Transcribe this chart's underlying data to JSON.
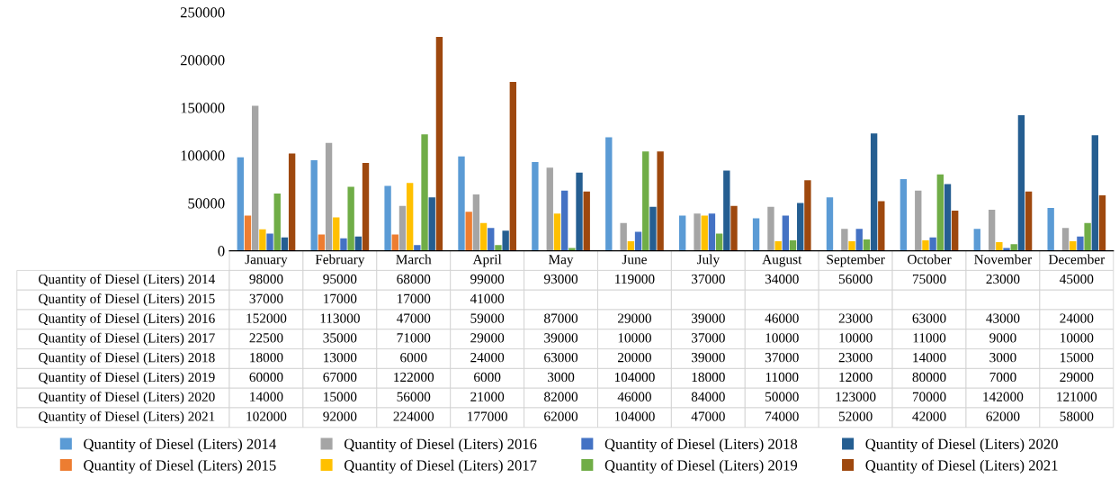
{
  "chart_data": {
    "type": "bar",
    "categories": [
      "January",
      "February",
      "March",
      "April",
      "May",
      "June",
      "July",
      "August",
      "September",
      "October",
      "November",
      "December"
    ],
    "series": [
      {
        "name": "Quantity of Diesel (Liters) 2014",
        "color": "#5b9bd5",
        "values": [
          98000,
          95000,
          68000,
          99000,
          93000,
          119000,
          37000,
          34000,
          56000,
          75000,
          23000,
          45000
        ]
      },
      {
        "name": "Quantity of Diesel (Liters) 2015",
        "color": "#ed7d31",
        "values": [
          37000,
          17000,
          17000,
          41000,
          null,
          null,
          null,
          null,
          null,
          null,
          null,
          null
        ]
      },
      {
        "name": "Quantity of Diesel (Liters) 2016",
        "color": "#a5a5a5",
        "values": [
          152000,
          113000,
          47000,
          59000,
          87000,
          29000,
          39000,
          46000,
          23000,
          63000,
          43000,
          24000
        ]
      },
      {
        "name": "Quantity of Diesel (Liters) 2017",
        "color": "#ffc000",
        "values": [
          22500,
          35000,
          71000,
          29000,
          39000,
          10000,
          37000,
          10000,
          10000,
          11000,
          9000,
          10000
        ]
      },
      {
        "name": "Quantity of Diesel (Liters) 2018",
        "color": "#4472c4",
        "values": [
          18000,
          13000,
          6000,
          24000,
          63000,
          20000,
          39000,
          37000,
          23000,
          14000,
          3000,
          15000
        ]
      },
      {
        "name": "Quantity of Diesel (Liters) 2019",
        "color": "#70ad47",
        "values": [
          60000,
          67000,
          122000,
          6000,
          3000,
          104000,
          18000,
          11000,
          12000,
          80000,
          7000,
          29000
        ]
      },
      {
        "name": "Quantity of Diesel (Liters) 2020",
        "color": "#255e91",
        "values": [
          14000,
          15000,
          56000,
          21000,
          82000,
          46000,
          84000,
          50000,
          123000,
          70000,
          142000,
          121000
        ]
      },
      {
        "name": "Quantity of Diesel (Liters) 2021",
        "color": "#9e480e",
        "values": [
          102000,
          92000,
          224000,
          177000,
          62000,
          104000,
          47000,
          74000,
          52000,
          42000,
          62000,
          58000
        ]
      }
    ],
    "ylim": [
      0,
      250000
    ],
    "yticks": [
      0,
      50000,
      100000,
      150000,
      200000,
      250000
    ],
    "grid": false,
    "legend": "bottom",
    "data_labels": true
  }
}
